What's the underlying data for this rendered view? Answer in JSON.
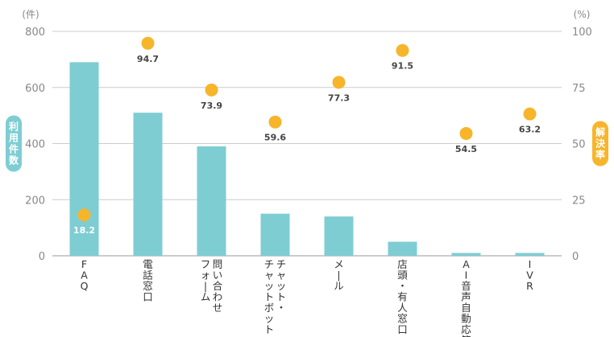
{
  "chart_data": {
    "type": "bar",
    "categories": [
      [
        "F",
        "A",
        "Q"
      ],
      [
        "電",
        "話",
        "窓",
        "口"
      ],
      [
        "問",
        "い",
        "合",
        "わ",
        "せ",
        "|",
        "フ",
        "ォ",
        "ー",
        "ム"
      ],
      [
        "チ",
        "ャ",
        "ッ",
        "ト",
        "・",
        "|",
        "チ",
        "ャ",
        "ッ",
        "ト",
        "ボ",
        "ッ",
        "ト"
      ],
      [
        "メ",
        "ー",
        "ル"
      ],
      [
        "店",
        "頭",
        "・",
        "有",
        "人",
        "窓",
        "口"
      ],
      [
        "A",
        "I",
        "音",
        "声",
        "自",
        "動",
        "応",
        "答"
      ],
      [
        "I",
        "V",
        "R"
      ]
    ],
    "category_labels": [
      "FAQ",
      "電話窓口",
      "問い合わせフォーム",
      "チャット・チャットボット",
      "メール",
      "店頭・有人窓口",
      "AI音声自動応答",
      "IVR"
    ],
    "series": [
      {
        "name": "利用件数",
        "type": "bar",
        "axis": "left",
        "values": [
          690,
          510,
          390,
          150,
          140,
          50,
          10,
          10
        ],
        "color": "#7ecdd3"
      },
      {
        "name": "解決率",
        "type": "scatter",
        "axis": "right",
        "values": [
          18.2,
          94.7,
          73.9,
          59.6,
          77.3,
          91.5,
          54.5,
          63.2
        ],
        "labels": [
          "18.2",
          "94.7",
          "73.9",
          "59.6",
          "77.3",
          "91.5",
          "54.5",
          "63.2"
        ],
        "color": "#f6b52b"
      }
    ],
    "y_left": {
      "title_chars": [
        "利",
        "用",
        "件",
        "数"
      ],
      "unit": "(件)",
      "ylim": [
        0,
        800
      ],
      "ticks": [
        0,
        200,
        400,
        600,
        800
      ],
      "color": "#7ecdd3"
    },
    "y_right": {
      "title_chars": [
        "解",
        "決",
        "率"
      ],
      "unit": "(%)",
      "ylim": [
        0,
        100
      ],
      "ticks": [
        0,
        25,
        50,
        75,
        100
      ],
      "color": "#f6b52b"
    },
    "grid": true
  }
}
